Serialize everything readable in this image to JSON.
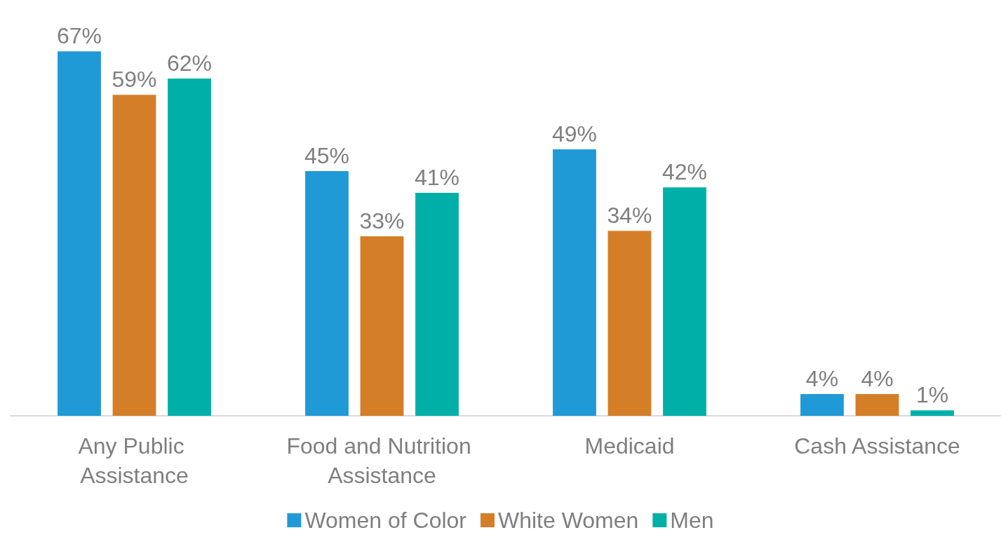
{
  "chart_data": {
    "type": "bar",
    "categories": [
      "Any Public Assistance",
      "Food and Nutrition Assistance",
      "Medicaid",
      "Cash Assistance"
    ],
    "series": [
      {
        "name": "Women of Color",
        "color": "#1f9ad6",
        "values": [
          67,
          45,
          49,
          4
        ],
        "value_labels": [
          "67%",
          "45%",
          "49%",
          "4%"
        ]
      },
      {
        "name": "White Women",
        "color": "#d47f28",
        "values": [
          59,
          33,
          34,
          4
        ],
        "value_labels": [
          "59%",
          "33%",
          "34%",
          "4%"
        ]
      },
      {
        "name": "Men",
        "color": "#00b0a8",
        "values": [
          62,
          41,
          42,
          1
        ],
        "value_labels": [
          "62%",
          "41%",
          "42%",
          "1%"
        ]
      }
    ],
    "legend": "bottom",
    "grid": false
  }
}
